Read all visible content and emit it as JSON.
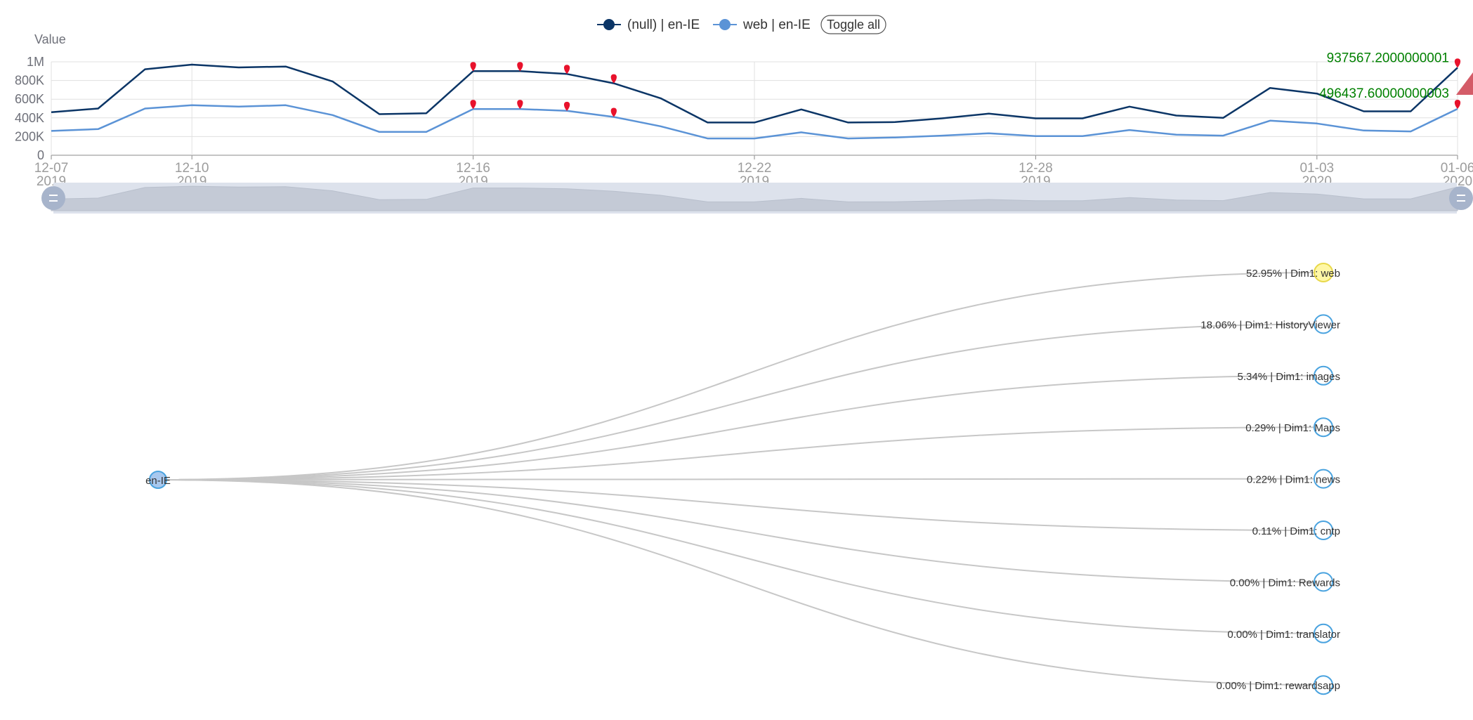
{
  "legend": {
    "series": [
      {
        "label": "(null) | en-IE",
        "color": "#0b3566"
      },
      {
        "label": "web | en-IE",
        "color": "#5b93d6"
      }
    ],
    "toggle_label": "Toggle all"
  },
  "colors": {
    "grid": "#e0e0e0",
    "axis": "#8a8a8a",
    "marker": "#e8122c",
    "tag_text": "#008000",
    "link": "#c7c7c7",
    "node_default": "#4aa3df",
    "node_root_fill": "#a8c8ee",
    "node_selected_fill": "#fff7a6",
    "node_selected_stroke": "#e8d84a",
    "slider_bg": "#dde2ec",
    "slider_area": "#c4cad6",
    "slider_handle": "#a7b4cb"
  },
  "chart_data": {
    "type": "line",
    "ylabel": "Value",
    "ylim": [
      0,
      1000000
    ],
    "y_ticks": [
      "0",
      "200K",
      "400K",
      "600K",
      "800K",
      "1M"
    ],
    "x_ticks": [
      {
        "index": 0,
        "label": "12-07",
        "year": "2019"
      },
      {
        "index": 6,
        "label": "12-10",
        "year": "2019"
      },
      {
        "index": 18,
        "label": "12-16",
        "year": "2019"
      },
      {
        "index": 30,
        "label": "12-22",
        "year": "2019"
      },
      {
        "index": 42,
        "label": "12-28",
        "year": "2019"
      },
      {
        "index": 54,
        "label": "01-03",
        "year": "2020"
      },
      {
        "index": 60,
        "label": "01-06",
        "year": "2020"
      }
    ],
    "x_count": 61,
    "series": [
      {
        "name": "(null) | en-IE",
        "points": [
          [
            0,
            460000
          ],
          [
            2,
            500000
          ],
          [
            4,
            920000
          ],
          [
            6,
            970000
          ],
          [
            8,
            940000
          ],
          [
            10,
            950000
          ],
          [
            12,
            790000
          ],
          [
            14,
            440000
          ],
          [
            16,
            450000
          ],
          [
            18,
            900000
          ],
          [
            20,
            900000
          ],
          [
            22,
            870000
          ],
          [
            24,
            770000
          ],
          [
            26,
            610000
          ],
          [
            28,
            350000
          ],
          [
            30,
            350000
          ],
          [
            32,
            490000
          ],
          [
            34,
            350000
          ],
          [
            36,
            355000
          ],
          [
            38,
            395000
          ],
          [
            40,
            445000
          ],
          [
            42,
            395000
          ],
          [
            44,
            395000
          ],
          [
            46,
            520000
          ],
          [
            48,
            425000
          ],
          [
            50,
            400000
          ],
          [
            52,
            720000
          ],
          [
            54,
            660000
          ],
          [
            56,
            470000
          ],
          [
            58,
            470000
          ],
          [
            60,
            937567.2
          ]
        ],
        "markers": [
          18,
          20,
          22,
          24,
          60
        ]
      },
      {
        "name": "web | en-IE",
        "points": [
          [
            0,
            260000
          ],
          [
            2,
            280000
          ],
          [
            4,
            500000
          ],
          [
            6,
            535000
          ],
          [
            8,
            520000
          ],
          [
            10,
            535000
          ],
          [
            12,
            430000
          ],
          [
            14,
            250000
          ],
          [
            16,
            250000
          ],
          [
            18,
            495000
          ],
          [
            20,
            495000
          ],
          [
            22,
            475000
          ],
          [
            24,
            410000
          ],
          [
            26,
            310000
          ],
          [
            28,
            180000
          ],
          [
            30,
            180000
          ],
          [
            32,
            245000
          ],
          [
            34,
            180000
          ],
          [
            36,
            190000
          ],
          [
            38,
            210000
          ],
          [
            40,
            235000
          ],
          [
            42,
            205000
          ],
          [
            44,
            205000
          ],
          [
            46,
            270000
          ],
          [
            48,
            220000
          ],
          [
            50,
            210000
          ],
          [
            52,
            370000
          ],
          [
            54,
            340000
          ],
          [
            56,
            265000
          ],
          [
            58,
            255000
          ],
          [
            60,
            496437.6
          ]
        ],
        "markers": [
          18,
          20,
          22,
          24,
          60
        ]
      }
    ],
    "end_tags": [
      "937567.2000000001",
      "496437.60000000003"
    ],
    "grid": true,
    "legend_position": "top-center"
  },
  "tree": {
    "root_label": "en-IE",
    "leaves": [
      {
        "label": "52.95% | Dim1: web",
        "selected": true
      },
      {
        "label": "18.06% | Dim1: HistoryViewer",
        "selected": false
      },
      {
        "label": "5.34% | Dim1: images",
        "selected": false
      },
      {
        "label": "0.29% | Dim1: Maps",
        "selected": false
      },
      {
        "label": "0.22% | Dim1: news",
        "selected": false
      },
      {
        "label": "0.11% | Dim1: cntp",
        "selected": false
      },
      {
        "label": "0.00% | Dim1: Rewards",
        "selected": false
      },
      {
        "label": "0.00% | Dim1: translator",
        "selected": false
      },
      {
        "label": "0.00% | Dim1: rewardsapp",
        "selected": false
      }
    ]
  }
}
